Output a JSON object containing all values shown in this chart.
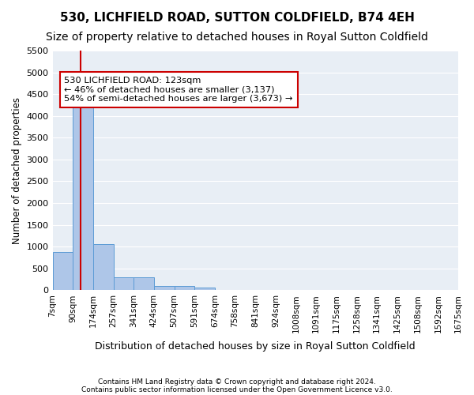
{
  "title": "530, LICHFIELD ROAD, SUTTON COLDFIELD, B74 4EH",
  "subtitle": "Size of property relative to detached houses in Royal Sutton Coldfield",
  "xlabel": "Distribution of detached houses by size in Royal Sutton Coldfield",
  "ylabel": "Number of detached properties",
  "footnote1": "Contains HM Land Registry data © Crown copyright and database right 2024.",
  "footnote2": "Contains public sector information licensed under the Open Government Licence v3.0.",
  "bin_labels": [
    "7sqm",
    "90sqm",
    "174sqm",
    "257sqm",
    "341sqm",
    "424sqm",
    "507sqm",
    "591sqm",
    "674sqm",
    "758sqm",
    "841sqm",
    "924sqm",
    "1008sqm",
    "1091sqm",
    "1175sqm",
    "1258sqm",
    "1341sqm",
    "1425sqm",
    "1508sqm",
    "1592sqm",
    "1675sqm"
  ],
  "values": [
    880,
    4560,
    1060,
    290,
    290,
    90,
    90,
    60,
    0,
    0,
    0,
    0,
    0,
    0,
    0,
    0,
    0,
    0,
    0,
    0
  ],
  "bar_color": "#aec6e8",
  "bar_edge_color": "#5b9bd5",
  "red_line_color": "#cc0000",
  "annotation_text": "530 LICHFIELD ROAD: 123sqm\n← 46% of detached houses are smaller (3,137)\n54% of semi-detached houses are larger (3,673) →",
  "annotation_box_color": "#ffffff",
  "annotation_box_edge": "#cc0000",
  "ylim": [
    0,
    5500
  ],
  "yticks": [
    0,
    500,
    1000,
    1500,
    2000,
    2500,
    3000,
    3500,
    4000,
    4500,
    5000,
    5500
  ],
  "background_color": "#e8eef5",
  "title_fontsize": 11,
  "subtitle_fontsize": 10
}
